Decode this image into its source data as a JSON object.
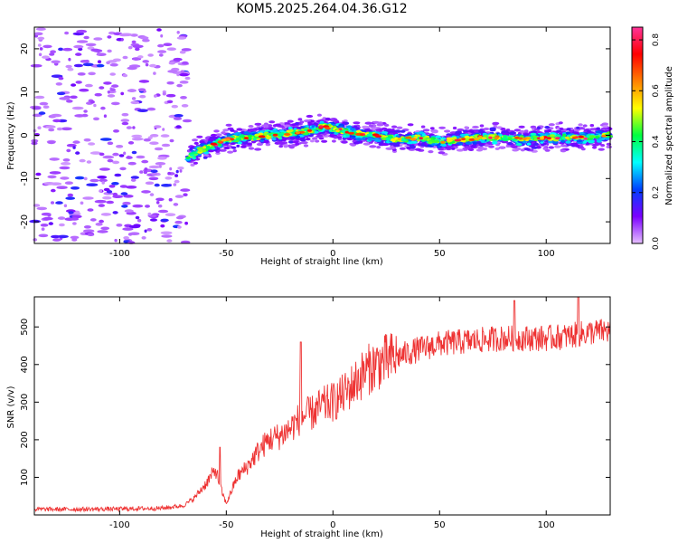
{
  "chart_data": [
    {
      "type": "heatmap",
      "title": "KOM5.2025.264.04.36.G12",
      "xlabel": "Height of straight line (km)",
      "ylabel": "Frequency (Hz)",
      "xlim": [
        -140,
        130
      ],
      "ylim": [
        -25,
        25
      ],
      "xticks": [
        -100,
        -50,
        0,
        50,
        100
      ],
      "yticks": [
        -20,
        -10,
        0,
        10,
        20
      ],
      "colorbar": {
        "label": "Normalized spectral amplitude",
        "range": [
          0.0,
          0.85
        ],
        "ticks": [
          "0.0",
          "0.2",
          "0.4",
          "0.6",
          "0.8"
        ],
        "stops": [
          "#e6bfff",
          "#7b00ff",
          "#0040ff",
          "#00ffff",
          "#00ff40",
          "#ffff00",
          "#ff8000",
          "#ff0000",
          "#ff3399"
        ]
      },
      "noise_region_x": [
        -140,
        -68
      ],
      "ridge": {
        "x": [
          -68,
          -60,
          -55,
          -50,
          -40,
          -30,
          -20,
          -10,
          -5,
          0,
          10,
          20,
          30,
          40,
          50,
          60,
          70,
          80,
          90,
          100,
          110,
          120,
          130
        ],
        "freq": [
          -5,
          -3,
          -2,
          -1,
          -0.5,
          0,
          0.5,
          1,
          2,
          1.5,
          0.5,
          0,
          -1,
          -0.5,
          -1.5,
          -1,
          -0.5,
          -0.5,
          -1,
          -0.5,
          -0.5,
          -0.5,
          0
        ]
      }
    },
    {
      "type": "line",
      "title": "",
      "xlabel": "Height of straight line (km)",
      "ylabel": "SNR (v/v)",
      "xlim": [
        -140,
        130
      ],
      "ylim": [
        0,
        580
      ],
      "xticks": [
        -100,
        -50,
        0,
        50,
        100
      ],
      "yticks": [
        100,
        200,
        300,
        400,
        500
      ],
      "series": [
        {
          "name": "SNR",
          "color": "#ee3333",
          "x": [
            -140,
            -120,
            -100,
            -80,
            -70,
            -65,
            -60,
            -55,
            -52,
            -50,
            -45,
            -40,
            -35,
            -30,
            -25,
            -20,
            -15,
            -10,
            -5,
            0,
            5,
            10,
            15,
            20,
            25,
            30,
            40,
            50,
            60,
            70,
            80,
            90,
            100,
            110,
            120,
            130
          ],
          "y": [
            15,
            15,
            16,
            18,
            25,
            45,
            80,
            120,
            60,
            30,
            100,
            130,
            170,
            200,
            210,
            230,
            260,
            270,
            290,
            300,
            320,
            350,
            380,
            400,
            410,
            420,
            440,
            455,
            460,
            465,
            470,
            470,
            470,
            475,
            485,
            490
          ],
          "spikes": [
            {
              "x": -53,
              "y": 180
            },
            {
              "x": -15,
              "y": 460
            },
            {
              "x": 85,
              "y": 570
            },
            {
              "x": 115,
              "y": 580
            }
          ]
        }
      ]
    }
  ]
}
